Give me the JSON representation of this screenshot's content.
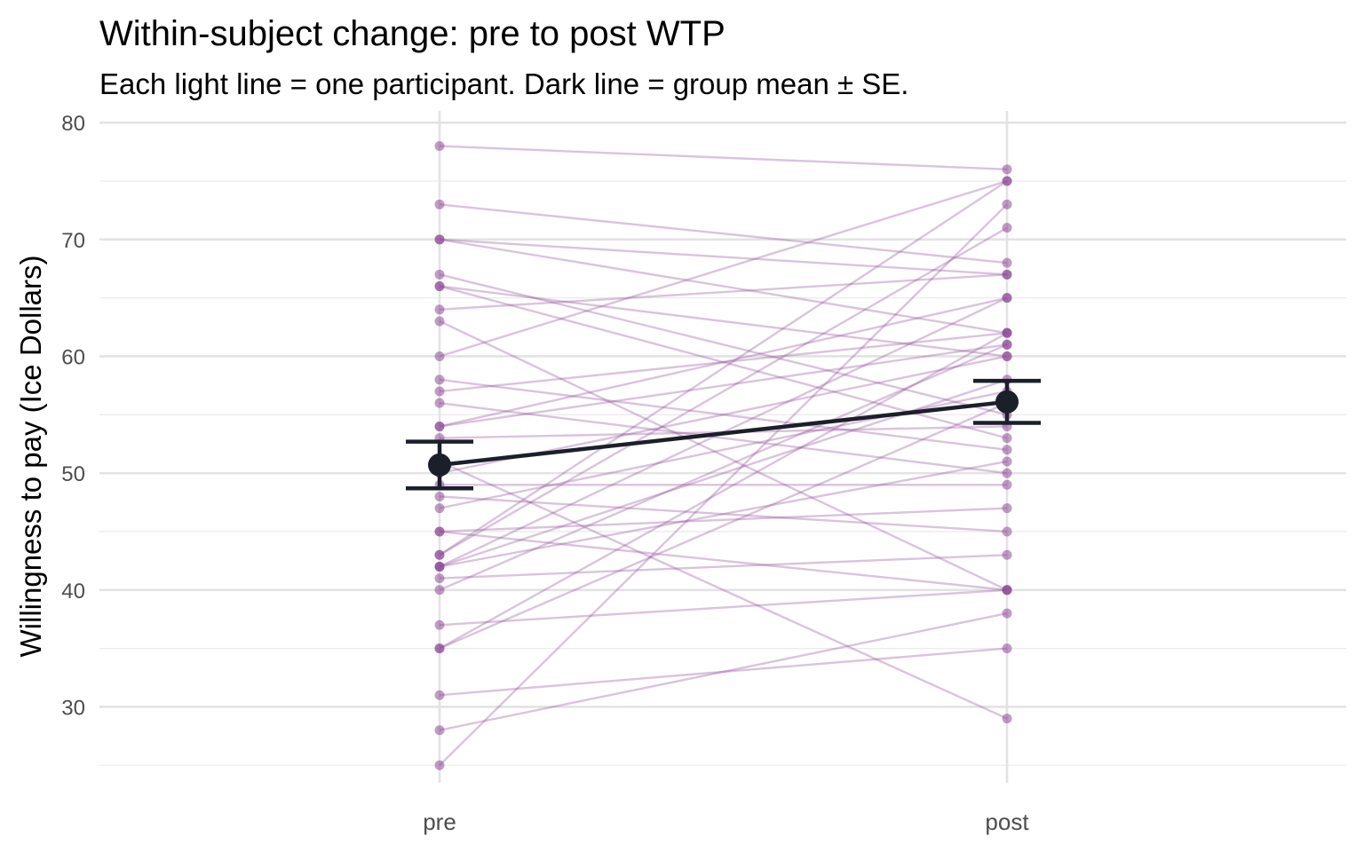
{
  "chart_data": {
    "type": "line",
    "title": "Within-subject change: pre to post WTP",
    "subtitle": "Each light line = one participant.   Dark line = group mean ± SE.",
    "xlabel": "",
    "ylabel": "Willingness to pay (Ice Dollars)",
    "categories": [
      "pre",
      "post"
    ],
    "ylim": [
      23.5,
      81
    ],
    "yticks": [
      30,
      40,
      50,
      60,
      70,
      80
    ],
    "grid": true,
    "legend": "none",
    "participant_color": "#8e4a98",
    "mean_color": "#1b1f2a",
    "participants": [
      {
        "pre": 78,
        "post": 76
      },
      {
        "pre": 73,
        "post": 68
      },
      {
        "pre": 70,
        "post": 67
      },
      {
        "pre": 70,
        "post": 62
      },
      {
        "pre": 67,
        "post": 55
      },
      {
        "pre": 66,
        "post": 60
      },
      {
        "pre": 66,
        "post": 53
      },
      {
        "pre": 64,
        "post": 67
      },
      {
        "pre": 63,
        "post": 40
      },
      {
        "pre": 60,
        "post": 75
      },
      {
        "pre": 58,
        "post": 52
      },
      {
        "pre": 57,
        "post": 62
      },
      {
        "pre": 56,
        "post": 50
      },
      {
        "pre": 54,
        "post": 65
      },
      {
        "pre": 54,
        "post": 61
      },
      {
        "pre": 53,
        "post": 54
      },
      {
        "pre": 51,
        "post": 29
      },
      {
        "pre": 50,
        "post": 60
      },
      {
        "pre": 49,
        "post": 49
      },
      {
        "pre": 48,
        "post": 45
      },
      {
        "pre": 47,
        "post": 57
      },
      {
        "pre": 45,
        "post": 40
      },
      {
        "pre": 45,
        "post": 47
      },
      {
        "pre": 43,
        "post": 75
      },
      {
        "pre": 43,
        "post": 71
      },
      {
        "pre": 42,
        "post": 65
      },
      {
        "pre": 42,
        "post": 58
      },
      {
        "pre": 42,
        "post": 51
      },
      {
        "pre": 41,
        "post": 43
      },
      {
        "pre": 40,
        "post": 61
      },
      {
        "pre": 37,
        "post": 40
      },
      {
        "pre": 35,
        "post": 62
      },
      {
        "pre": 35,
        "post": 56
      },
      {
        "pre": 31,
        "post": 35
      },
      {
        "pre": 28,
        "post": 38
      },
      {
        "pre": 25,
        "post": 73
      }
    ],
    "mean": {
      "pre": 50.7,
      "post": 56.1
    },
    "se": {
      "pre": 2.0,
      "post": 1.8
    }
  }
}
